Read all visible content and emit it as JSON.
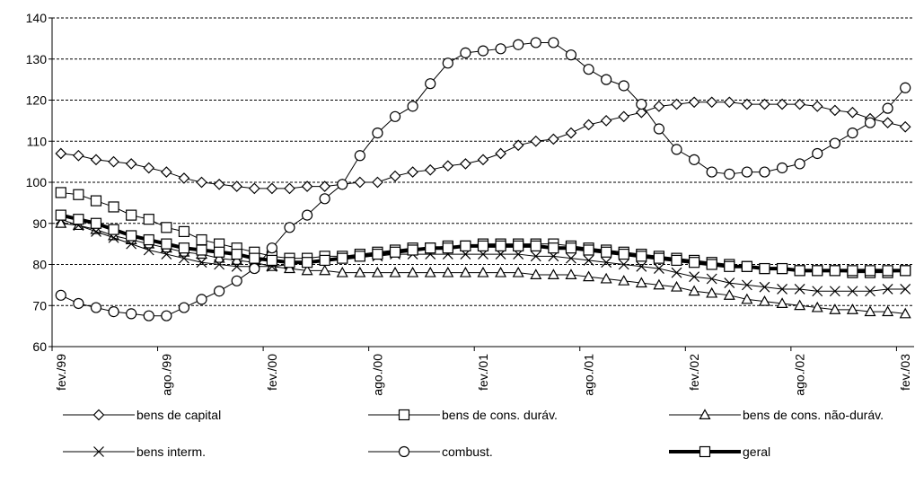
{
  "chart_data": {
    "type": "line",
    "categories": [
      "fev./99",
      null,
      null,
      null,
      null,
      null,
      "ago./99",
      null,
      null,
      null,
      null,
      null,
      "fev./00",
      null,
      null,
      null,
      null,
      null,
      "ago./00",
      null,
      null,
      null,
      null,
      null,
      "fev./01",
      null,
      null,
      null,
      null,
      null,
      "ago./01",
      null,
      null,
      null,
      null,
      null,
      "fev./02",
      null,
      null,
      null,
      null,
      null,
      "ago./02",
      null,
      null,
      null,
      null,
      null,
      "fev./03"
    ],
    "ylim": [
      60,
      140
    ],
    "yticks": [
      60,
      70,
      80,
      90,
      100,
      110,
      120,
      130,
      140
    ],
    "grid": true,
    "series": [
      {
        "name": "bens de capital",
        "color": "#000000",
        "marker": "diamond",
        "line_width": 1,
        "values": [
          107,
          106.5,
          105.5,
          105,
          104.5,
          103.5,
          102.5,
          101,
          100,
          99.5,
          99,
          98.5,
          98.5,
          98.5,
          99,
          99,
          99.5,
          100,
          100,
          101.5,
          102.5,
          103,
          104,
          104.5,
          105.5,
          107,
          109,
          110,
          110.5,
          112,
          114,
          115,
          116,
          117,
          118.5,
          119,
          119.5,
          119.5,
          119.5,
          119,
          119,
          119,
          119,
          118.5,
          117.5,
          117,
          115.5,
          114.5,
          113.5
        ]
      },
      {
        "name": "bens de cons. duráv.",
        "color": "#000000",
        "marker": "square",
        "line_width": 1,
        "values": [
          97.5,
          97,
          95.5,
          94,
          92,
          91,
          89,
          88,
          86,
          85,
          84,
          83,
          82,
          81.5,
          81.5,
          82,
          82,
          82.5,
          83,
          83.5,
          84,
          84,
          84.5,
          84.5,
          85,
          85,
          85,
          85,
          85,
          84.5,
          84,
          83.5,
          83,
          82.5,
          82,
          81.5,
          81,
          80.5,
          80,
          79.5,
          79,
          79,
          78.5,
          78.5,
          78.5,
          78,
          78,
          78,
          78.5
        ]
      },
      {
        "name": "bens de cons. não-duráv.",
        "color": "#000000",
        "marker": "triangle",
        "line_width": 1,
        "values": [
          90,
          89.5,
          88.5,
          87,
          86,
          85,
          84,
          83,
          82.5,
          81.5,
          81,
          80.5,
          79.5,
          79,
          78.5,
          78.5,
          78,
          78,
          78,
          78,
          78,
          78,
          78,
          78,
          78,
          78,
          78,
          77.5,
          77.5,
          77.5,
          77,
          76.5,
          76,
          75.5,
          75,
          74.5,
          73.5,
          73,
          72.5,
          71.5,
          71,
          70.5,
          70,
          69.5,
          69,
          69,
          68.5,
          68.5,
          68
        ]
      },
      {
        "name": "bens interm.",
        "color": "#000000",
        "marker": "x",
        "line_width": 1,
        "values": [
          91,
          89.5,
          88,
          86.5,
          85,
          83.5,
          82.5,
          81.5,
          80.5,
          80,
          79.5,
          79.5,
          79.5,
          80,
          80.5,
          81,
          81.5,
          82,
          82,
          82.5,
          82.5,
          82.5,
          82.5,
          82.5,
          82.5,
          82.5,
          82.5,
          82,
          82,
          81.5,
          81,
          80.5,
          80,
          79.5,
          79,
          78,
          77,
          76.5,
          75.5,
          75,
          74.5,
          74,
          74,
          73.5,
          73.5,
          73.5,
          73.5,
          74,
          74
        ]
      },
      {
        "name": "combust.",
        "color": "#000000",
        "marker": "circle",
        "line_width": 1,
        "values": [
          72.5,
          70.5,
          69.5,
          68.5,
          68,
          67.5,
          67.5,
          69.5,
          71.5,
          73.5,
          76,
          79,
          84,
          89,
          92,
          96,
          99.5,
          106.5,
          112,
          116,
          118.5,
          124,
          129,
          131.5,
          132,
          132.5,
          133.5,
          134,
          134,
          131,
          127.5,
          125,
          123.5,
          119,
          113,
          108,
          105.5,
          102.5,
          102,
          102.5,
          102.5,
          103.5,
          104.5,
          107,
          109.5,
          112,
          114.5,
          118,
          123
        ]
      },
      {
        "name": "geral",
        "color": "#000000",
        "marker": "square",
        "line_width": 4,
        "values": [
          92,
          91,
          90,
          88.5,
          87,
          86,
          85,
          84,
          83.5,
          83,
          82.5,
          81.5,
          81,
          80.5,
          80.5,
          81,
          81.5,
          82,
          82.5,
          83,
          83.5,
          84,
          84,
          84.5,
          84.5,
          84.5,
          84.5,
          84.5,
          84,
          84,
          83.5,
          83,
          82.5,
          82,
          81.5,
          81,
          80.5,
          80,
          79.5,
          79.5,
          79,
          79,
          78.5,
          78.5,
          78.5,
          78.5,
          78.5,
          78.5,
          78.5
        ]
      }
    ]
  }
}
